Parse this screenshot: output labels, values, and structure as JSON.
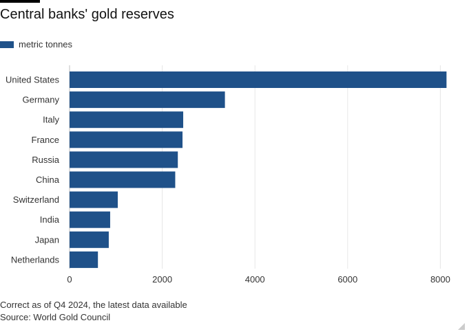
{
  "title": "Central banks' gold reserves",
  "legend": {
    "label": "metric tonnes"
  },
  "colors": {
    "bar": "#1f5189",
    "grid": "#e6e6e6"
  },
  "footnotes": {
    "note": "Correct as of Q4 2024, the latest data available",
    "source": "Source: World Gold Council"
  },
  "chart_data": {
    "type": "bar",
    "orientation": "horizontal",
    "categories": [
      "United States",
      "Germany",
      "Italy",
      "France",
      "Russia",
      "China",
      "Switzerland",
      "India",
      "Japan",
      "Netherlands"
    ],
    "series": [
      {
        "name": "metric tonnes",
        "values": [
          8133,
          3352,
          2452,
          2437,
          2336,
          2280,
          1040,
          876,
          846,
          612
        ]
      }
    ],
    "xlim": [
      0,
      8200
    ],
    "xticks": [
      0,
      2000,
      4000,
      6000,
      8000
    ],
    "grid": true
  }
}
